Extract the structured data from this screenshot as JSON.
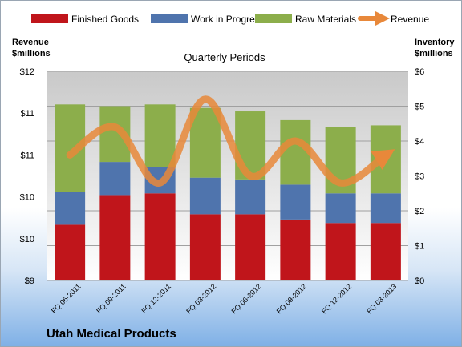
{
  "chart_data": {
    "type": "bar",
    "stacked": true,
    "subtitle": "Quarterly Periods",
    "company": "Utah Medical Products",
    "categories": [
      "FQ 06-2011",
      "FQ 09-2011",
      "FQ 12-2011",
      "FQ 03-2012",
      "FQ 06-2012",
      "FQ 09-2012",
      "FQ 12-2012",
      "FQ 03-2013"
    ],
    "series": [
      {
        "name": "Finished Goods",
        "axis": "right",
        "color": "#c0151b",
        "values": [
          1.6,
          2.45,
          2.5,
          1.9,
          1.9,
          1.75,
          1.65,
          1.65
        ]
      },
      {
        "name": "Work in Progress",
        "axis": "right",
        "color": "#4f74ad",
        "values": [
          0.95,
          0.95,
          0.75,
          1.05,
          1.0,
          1.0,
          0.85,
          0.85
        ]
      },
      {
        "name": "Raw Materials",
        "axis": "right",
        "color": "#8cae4b",
        "values": [
          2.5,
          1.6,
          1.8,
          2.0,
          1.95,
          1.85,
          1.9,
          1.95
        ]
      }
    ],
    "line_series": {
      "name": "Revenue",
      "axis": "left",
      "color": "#e8883a",
      "values": [
        10.8,
        11.2,
        10.4,
        11.6,
        10.5,
        11.0,
        10.4,
        10.8
      ]
    },
    "left_axis": {
      "title_lines": [
        "Revenue",
        "$millions"
      ],
      "ticks": [
        "$12",
        "$11",
        "$11",
        "$10",
        "$10",
        "$9"
      ],
      "range": [
        9,
        12
      ]
    },
    "right_axis": {
      "title_lines": [
        "Inventory",
        "$millions"
      ],
      "ticks": [
        "$6",
        "$5",
        "$4",
        "$3",
        "$2",
        "$1",
        "$0"
      ],
      "range": [
        0,
        6
      ]
    },
    "legend_position": "top"
  }
}
